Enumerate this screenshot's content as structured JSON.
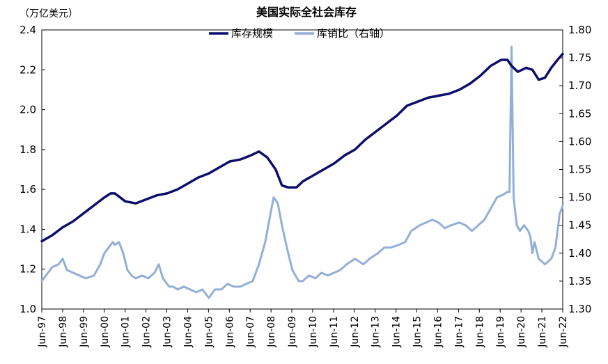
{
  "chart_data": {
    "type": "line",
    "title": "美国实际全社会库存",
    "y_unit_label": "（万亿美元）",
    "ylim_left": [
      1.0,
      2.4
    ],
    "ylim_right": [
      1.3,
      1.8
    ],
    "yticks_left": [
      "1.0",
      "1.2",
      "1.4",
      "1.6",
      "1.8",
      "2.0",
      "2.2",
      "2.4"
    ],
    "yticks_right": [
      "1.30",
      "1.35",
      "1.40",
      "1.45",
      "1.50",
      "1.55",
      "1.60",
      "1.65",
      "1.70",
      "1.75",
      "1.80"
    ],
    "categories": [
      "Jun-97",
      "Jun-98",
      "Jun-99",
      "Jun-00",
      "Jun-01",
      "Jun-02",
      "Jun-03",
      "Jun-04",
      "Jun-05",
      "Jun-06",
      "Jun-07",
      "Jun-08",
      "Jun-09",
      "Jun-10",
      "Jun-11",
      "Jun-12",
      "Jun-13",
      "Jun-14",
      "Jun-15",
      "Jun-16",
      "Jun-17",
      "Jun-18",
      "Jun-19",
      "Jun-20",
      "Jun-21",
      "Jun-22"
    ],
    "series": [
      {
        "name": "库存规模",
        "axis": "left",
        "color": "#0d0d6b",
        "x": [
          1997.5,
          1998.0,
          1998.5,
          1999.0,
          1999.5,
          2000.0,
          2000.5,
          2000.8,
          2001.0,
          2001.5,
          2002.0,
          2002.5,
          2003.0,
          2003.5,
          2004.0,
          2004.5,
          2005.0,
          2005.5,
          2006.0,
          2006.5,
          2007.0,
          2007.5,
          2007.9,
          2008.3,
          2008.7,
          2009.0,
          2009.3,
          2009.7,
          2010.0,
          2010.5,
          2011.0,
          2011.5,
          2012.0,
          2012.5,
          2013.0,
          2013.5,
          2014.0,
          2014.5,
          2015.0,
          2015.5,
          2016.0,
          2016.5,
          2017.0,
          2017.5,
          2018.0,
          2018.5,
          2019.0,
          2019.5,
          2019.8,
          2020.0,
          2020.3,
          2020.7,
          2021.0,
          2021.3,
          2021.6,
          2021.9,
          2022.2,
          2022.45
        ],
        "values": [
          1.34,
          1.37,
          1.41,
          1.44,
          1.48,
          1.52,
          1.56,
          1.58,
          1.58,
          1.54,
          1.53,
          1.55,
          1.57,
          1.58,
          1.6,
          1.63,
          1.66,
          1.68,
          1.71,
          1.74,
          1.75,
          1.77,
          1.79,
          1.76,
          1.7,
          1.62,
          1.61,
          1.61,
          1.64,
          1.67,
          1.7,
          1.73,
          1.77,
          1.8,
          1.85,
          1.89,
          1.93,
          1.97,
          2.02,
          2.04,
          2.06,
          2.07,
          2.08,
          2.1,
          2.13,
          2.17,
          2.22,
          2.25,
          2.25,
          2.22,
          2.19,
          2.21,
          2.2,
          2.15,
          2.16,
          2.21,
          2.25,
          2.28
        ]
      },
      {
        "name": "库销比（右轴）",
        "axis": "right",
        "color": "#92afd7",
        "x": [
          1997.5,
          1997.7,
          1998.0,
          1998.3,
          1998.5,
          1998.7,
          1999.0,
          1999.3,
          1999.6,
          2000.0,
          2000.3,
          2000.5,
          2000.7,
          2000.9,
          2001.0,
          2001.2,
          2001.4,
          2001.6,
          2001.8,
          2002.0,
          2002.3,
          2002.6,
          2002.9,
          2003.1,
          2003.3,
          2003.6,
          2003.8,
          2004.0,
          2004.3,
          2004.6,
          2004.9,
          2005.2,
          2005.5,
          2005.8,
          2006.1,
          2006.4,
          2006.7,
          2007.0,
          2007.3,
          2007.6,
          2007.9,
          2008.2,
          2008.4,
          2008.6,
          2008.8,
          2009.0,
          2009.3,
          2009.5,
          2009.8,
          2010.0,
          2010.3,
          2010.6,
          2010.9,
          2011.2,
          2011.5,
          2011.8,
          2012.1,
          2012.5,
          2012.9,
          2013.2,
          2013.6,
          2013.9,
          2014.2,
          2014.6,
          2014.9,
          2015.2,
          2015.6,
          2015.9,
          2016.2,
          2016.5,
          2016.8,
          2017.1,
          2017.5,
          2017.8,
          2018.1,
          2018.4,
          2018.7,
          2019.0,
          2019.3,
          2019.6,
          2019.8,
          2019.9,
          2020.0,
          2020.1,
          2020.25,
          2020.4,
          2020.6,
          2020.8,
          2020.9,
          2021.0,
          2021.1,
          2021.3,
          2021.6,
          2021.9,
          2022.1,
          2022.3,
          2022.45
        ],
        "values": [
          1.35,
          1.36,
          1.375,
          1.38,
          1.39,
          1.37,
          1.365,
          1.36,
          1.355,
          1.36,
          1.38,
          1.4,
          1.41,
          1.42,
          1.415,
          1.42,
          1.4,
          1.37,
          1.36,
          1.355,
          1.36,
          1.355,
          1.365,
          1.38,
          1.355,
          1.34,
          1.34,
          1.335,
          1.34,
          1.335,
          1.33,
          1.335,
          1.32,
          1.335,
          1.335,
          1.345,
          1.34,
          1.34,
          1.345,
          1.35,
          1.38,
          1.42,
          1.46,
          1.5,
          1.49,
          1.45,
          1.4,
          1.37,
          1.35,
          1.35,
          1.36,
          1.355,
          1.365,
          1.36,
          1.365,
          1.37,
          1.38,
          1.39,
          1.38,
          1.39,
          1.4,
          1.41,
          1.41,
          1.415,
          1.42,
          1.44,
          1.45,
          1.455,
          1.46,
          1.455,
          1.445,
          1.45,
          1.455,
          1.45,
          1.44,
          1.45,
          1.46,
          1.48,
          1.5,
          1.505,
          1.51,
          1.51,
          1.77,
          1.5,
          1.45,
          1.44,
          1.45,
          1.44,
          1.43,
          1.4,
          1.42,
          1.39,
          1.38,
          1.39,
          1.41,
          1.47,
          1.485
        ]
      }
    ],
    "xlim": [
      1997.5,
      2022.45
    ]
  }
}
